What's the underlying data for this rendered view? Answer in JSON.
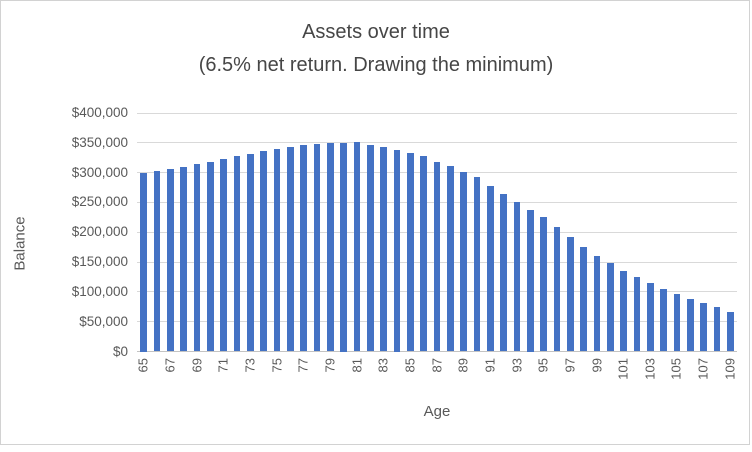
{
  "title": {
    "line1": "Assets over time",
    "line2": "(6.5% net return. Drawing the minimum)"
  },
  "y_axis": {
    "title": "Balance",
    "tick_labels": [
      "$0",
      "$50,000",
      "$100,000",
      "$150,000",
      "$200,000",
      "$250,000",
      "$300,000",
      "$350,000",
      "$400,000"
    ]
  },
  "x_axis": {
    "title": "Age",
    "labeled_ages": [
      65,
      67,
      69,
      71,
      73,
      75,
      77,
      79,
      81,
      83,
      85,
      87,
      89,
      91,
      93,
      95,
      97,
      99,
      101,
      103,
      105,
      107,
      109
    ]
  },
  "colors": {
    "bar": "#4472c4",
    "gridline": "#d9d9d9",
    "axis_text": "#595959",
    "title_text": "#464646"
  },
  "chart_data": {
    "type": "bar",
    "title": "Assets over time (6.5% net return. Drawing the minimum)",
    "xlabel": "Age",
    "ylabel": "Balance",
    "ylim": [
      0,
      400000
    ],
    "ytick_step": 50000,
    "grid": true,
    "legend": false,
    "categories": [
      65,
      66,
      67,
      68,
      69,
      70,
      71,
      72,
      73,
      74,
      75,
      76,
      77,
      78,
      79,
      80,
      81,
      82,
      83,
      84,
      85,
      86,
      87,
      88,
      89,
      90,
      91,
      92,
      93,
      94,
      95,
      96,
      97,
      98,
      99,
      100,
      101,
      102,
      103,
      104,
      105,
      106,
      107,
      108,
      109
    ],
    "values": [
      300000,
      303000,
      306500,
      310000,
      314000,
      318500,
      323000,
      327500,
      331000,
      335500,
      340000,
      343500,
      345500,
      347500,
      349000,
      350000,
      351000,
      347000,
      342500,
      337500,
      333500,
      328500,
      318500,
      310500,
      301000,
      293000,
      278000,
      264500,
      251500,
      237500,
      226000,
      208500,
      191500,
      175500,
      161000,
      148000,
      134500,
      125500,
      115000,
      105000,
      96500,
      88000,
      81000,
      74000,
      67000
    ]
  }
}
